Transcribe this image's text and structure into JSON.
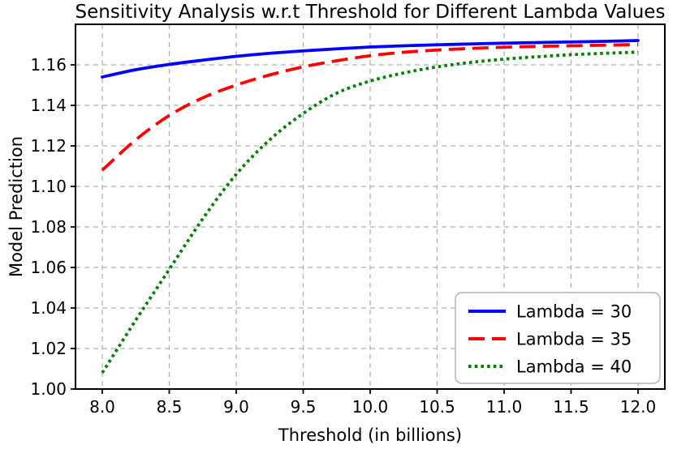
{
  "figure": {
    "background": "#ffffff",
    "grid_color": "#b0b0b0",
    "spine_color": "#000000"
  },
  "chart_data": {
    "type": "line",
    "title": "Sensitivity Analysis w.r.t Threshold for Different Lambda Values",
    "xlabel": "Threshold (in billions)",
    "ylabel": "Model Prediction",
    "xlim": [
      7.8,
      12.2
    ],
    "ylim": [
      1.0,
      1.18
    ],
    "x_ticks": [
      8.0,
      8.5,
      9.0,
      9.5,
      10.0,
      10.5,
      11.0,
      11.5,
      12.0
    ],
    "x_tick_labels": [
      "8.0",
      "8.5",
      "9.0",
      "9.5",
      "10.0",
      "10.5",
      "11.0",
      "11.5",
      "12.0"
    ],
    "y_ticks": [
      1.0,
      1.02,
      1.04,
      1.06,
      1.08,
      1.1,
      1.12,
      1.14,
      1.16
    ],
    "y_tick_labels": [
      "1.00",
      "1.02",
      "1.04",
      "1.06",
      "1.08",
      "1.10",
      "1.12",
      "1.14",
      "1.16"
    ],
    "grid": true,
    "grid_style": "dashed",
    "legend_position": "lower right",
    "x": [
      8.0,
      8.25,
      8.5,
      8.75,
      9.0,
      9.25,
      9.5,
      9.75,
      10.0,
      10.25,
      10.5,
      10.75,
      11.0,
      11.25,
      11.5,
      11.75,
      12.0
    ],
    "series": [
      {
        "name": "Lambda = 30",
        "color": "#0000ff",
        "style": "solid",
        "values": [
          1.154,
          1.1576,
          1.1602,
          1.1623,
          1.1642,
          1.1657,
          1.1669,
          1.1679,
          1.1688,
          1.1694,
          1.1699,
          1.1703,
          1.1707,
          1.171,
          1.1713,
          1.1716,
          1.172
        ]
      },
      {
        "name": "Lambda = 35",
        "color": "#ff0000",
        "style": "dashed",
        "values": [
          1.108,
          1.123,
          1.135,
          1.1437,
          1.15,
          1.155,
          1.159,
          1.162,
          1.1645,
          1.1662,
          1.1673,
          1.1681,
          1.1687,
          1.1691,
          1.1694,
          1.1697,
          1.17
        ]
      },
      {
        "name": "Lambda = 40",
        "color": "#008000",
        "style": "dotted",
        "values": [
          1.008,
          1.034,
          1.059,
          1.084,
          1.106,
          1.123,
          1.136,
          1.146,
          1.152,
          1.156,
          1.159,
          1.1612,
          1.1628,
          1.164,
          1.165,
          1.1657,
          1.1663
        ]
      }
    ]
  }
}
